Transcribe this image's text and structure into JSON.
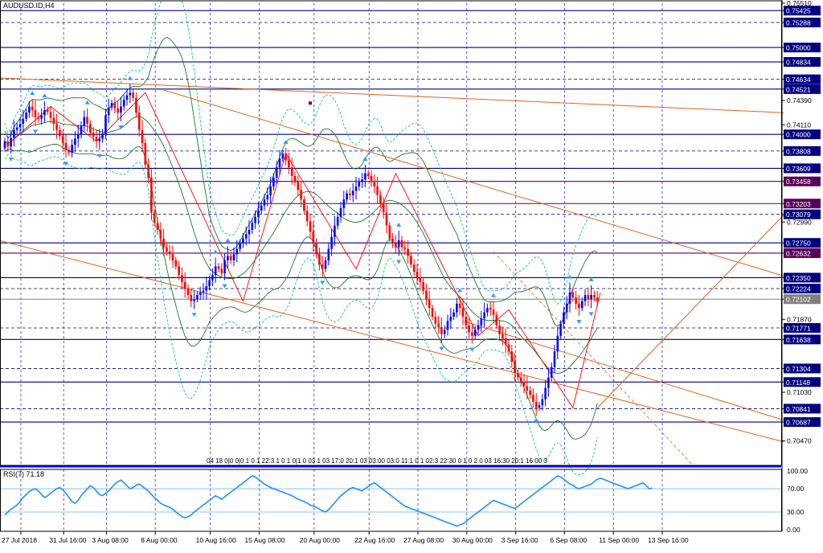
{
  "window_title": "AUDUSD.ID,H4",
  "colors": {
    "background": "#ffffff",
    "grid": "#0000cc",
    "frame": "#000080",
    "bull_candle": "#0000ff",
    "bear_candle": "#ff0000",
    "bb_middle": "#1a7a2a",
    "bb_outer": "#1a7a2a",
    "envelope": "#00cc88",
    "channel_line": "#e0641a",
    "fractal_arrow": "#3399ff",
    "rsi_line": "#1e90ff",
    "hline": "#000080",
    "price_box_bg": "#000080",
    "price_box_alt_bg": "#5a005a",
    "price_box_text": "#ffffff",
    "current_price_box_bg": "#808080"
  },
  "chart_data": [
    {
      "type": "candlestick",
      "title": "AUDUSD.ID,H4",
      "x_tick_labels": [
        "27 Jul 2018",
        "31 Jul 16:00",
        "3 Aug 08:00",
        "8 Aug 00:00",
        "10 Aug 16:00",
        "15 Aug 08:00",
        "20 Aug 00:00",
        "22 Aug 16:00",
        "27 Aug 08:00",
        "30 Aug 00:00",
        "3 Sep 16:00",
        "6 Sep 08:00",
        "11 Sep 00:00",
        "13 Sep 16:00"
      ],
      "x_tick_index": [
        0,
        14,
        28,
        44,
        62,
        78,
        96,
        114,
        130,
        146,
        162,
        178,
        194,
        210
      ],
      "ylim": [
        0.70188,
        0.7551
      ],
      "y_ticks": [
        "0.75510",
        "0.75425",
        "0.75288",
        "0.75000",
        "0.74834",
        "0.74634",
        "0.74521",
        "0.74390",
        "0.74110",
        "0.74000",
        "0.73808",
        "0.73609",
        "0.73458",
        "0.73203",
        "0.73079",
        "0.72990",
        "0.72750",
        "0.72632",
        "0.72350",
        "0.72224",
        "0.72102",
        "0.71870",
        "0.71771",
        "0.71638",
        "0.71304",
        "0.71148",
        "0.71030",
        "0.70841",
        "0.70687",
        "0.70470"
      ],
      "horizontal_levels": [
        {
          "price": 0.75425,
          "label": "0.75425",
          "style": "solid"
        },
        {
          "price": 0.75288,
          "label": "0.75288",
          "style": "dash"
        },
        {
          "price": 0.75,
          "label": "0.75000",
          "style": "solid"
        },
        {
          "price": 0.74834,
          "label": "0.74834",
          "style": "solid"
        },
        {
          "price": 0.74634,
          "label": "0.74634",
          "style": "dash"
        },
        {
          "price": 0.74521,
          "label": "0.74521",
          "style": "solid"
        },
        {
          "price": 0.74,
          "label": "0.74000",
          "style": "solid"
        },
        {
          "price": 0.73808,
          "label": "0.73808",
          "style": "dash"
        },
        {
          "price": 0.73609,
          "label": "0.73609",
          "style": "solid"
        },
        {
          "price": 0.73458,
          "label": "0.73458",
          "style": "alt"
        },
        {
          "price": 0.73203,
          "label": "0.73203",
          "style": "alt"
        },
        {
          "price": 0.73079,
          "label": "0.73079",
          "style": "dash"
        },
        {
          "price": 0.7275,
          "label": "0.72750",
          "style": "solid"
        },
        {
          "price": 0.72632,
          "label": "0.72632",
          "style": "alt"
        },
        {
          "price": 0.7235,
          "label": "0.72350",
          "style": "solid"
        },
        {
          "price": 0.72224,
          "label": "0.72224",
          "style": "dash"
        },
        {
          "price": 0.71771,
          "label": "0.71771",
          "style": "dash"
        },
        {
          "price": 0.71638,
          "label": "0.71638",
          "style": "solid"
        },
        {
          "price": 0.71304,
          "label": "0.71304",
          "style": "dash"
        },
        {
          "price": 0.71148,
          "label": "0.71148",
          "style": "solid"
        },
        {
          "price": 0.70841,
          "label": "0.70841",
          "style": "dash"
        },
        {
          "price": 0.70687,
          "label": "0.70687",
          "style": "solid"
        }
      ],
      "current_price": {
        "price": 0.72102,
        "label": "0.72102"
      },
      "closes": [
        0.7392,
        0.7386,
        0.7396,
        0.7405,
        0.7408,
        0.7412,
        0.7418,
        0.7425,
        0.7432,
        0.7428,
        0.742,
        0.7418,
        0.7422,
        0.7428,
        0.7426,
        0.7419,
        0.7412,
        0.7405,
        0.7398,
        0.739,
        0.7382,
        0.7379,
        0.7388,
        0.7395,
        0.74,
        0.741,
        0.742,
        0.7412,
        0.7402,
        0.7397,
        0.7392,
        0.7395,
        0.7401,
        0.7422,
        0.7431,
        0.7436,
        0.743,
        0.7425,
        0.7432,
        0.744,
        0.7445,
        0.7448,
        0.7442,
        0.7425,
        0.7405,
        0.739,
        0.7365,
        0.735,
        0.731,
        0.7298,
        0.729,
        0.728,
        0.727,
        0.7265,
        0.7262,
        0.7255,
        0.7248,
        0.7238,
        0.723,
        0.7222,
        0.7215,
        0.7208,
        0.721,
        0.7215,
        0.7218,
        0.722,
        0.7225,
        0.7232,
        0.7238,
        0.7248,
        0.7245,
        0.724,
        0.7255,
        0.726,
        0.7255,
        0.7262,
        0.7268,
        0.7275,
        0.728,
        0.7285,
        0.729,
        0.7298,
        0.7305,
        0.7312,
        0.7318,
        0.7325,
        0.733,
        0.734,
        0.735,
        0.7362,
        0.7372,
        0.7378,
        0.737,
        0.7362,
        0.7352,
        0.7345,
        0.7336,
        0.7325,
        0.7312,
        0.73,
        0.7288,
        0.7275,
        0.7262,
        0.725,
        0.7245,
        0.7255,
        0.7268,
        0.7282,
        0.7295,
        0.7305,
        0.7315,
        0.7325,
        0.7332,
        0.733,
        0.7335,
        0.734,
        0.7345,
        0.7348,
        0.7355,
        0.7352,
        0.7345,
        0.734,
        0.733,
        0.732,
        0.731,
        0.7295,
        0.728,
        0.7275,
        0.727,
        0.7278,
        0.727,
        0.7268,
        0.726,
        0.725,
        0.7242,
        0.7235,
        0.723,
        0.722,
        0.721,
        0.72,
        0.719,
        0.7182,
        0.7178,
        0.717,
        0.7175,
        0.7185,
        0.719,
        0.7195,
        0.7205,
        0.72,
        0.719,
        0.718,
        0.7172,
        0.7168,
        0.7175,
        0.718,
        0.7188,
        0.7195,
        0.72,
        0.7198,
        0.7192,
        0.718,
        0.717,
        0.7165,
        0.7158,
        0.715,
        0.7138,
        0.7125,
        0.712,
        0.7115,
        0.711,
        0.7105,
        0.71,
        0.7092,
        0.7085,
        0.7088,
        0.7095,
        0.7108,
        0.712,
        0.7132,
        0.715,
        0.7168,
        0.7182,
        0.7195,
        0.7205,
        0.7218,
        0.7212,
        0.7205,
        0.72,
        0.7208,
        0.7215,
        0.721,
        0.7215,
        0.7212,
        0.7208
      ],
      "indicators": [
        "Bollinger Bands",
        "Envelopes",
        "Fractals",
        "ZigZag"
      ],
      "trendlines": "orange channel lines",
      "bottom_time_labels": "04 18 0|0 0|0 1 0 1 22:3 1 0 1 0|1 0 03 1 03 17:0 20:1 03 03:00 03:0 11:1 0 1 02:3 22:30 0 1 0 2 0 03 16:30 20:1 16:00 3",
      "marker_point": {
        "index": 100,
        "price": 0.7436
      }
    },
    {
      "type": "line",
      "title": "RSI(7) 71.18",
      "indicator": "RSI(7)",
      "value_label": "71.18",
      "ylim": [
        -3,
        103
      ],
      "y_ticks": [
        "100.00",
        "70.00",
        "30.00",
        "0.00"
      ],
      "levels": [
        70,
        30
      ],
      "values": [
        25,
        30,
        35,
        38,
        42,
        48,
        55,
        60,
        65,
        68,
        70,
        66,
        60,
        55,
        58,
        62,
        66,
        70,
        72,
        68,
        62,
        55,
        48,
        45,
        50,
        58,
        64,
        70,
        75,
        72,
        66,
        60,
        58,
        62,
        66,
        72,
        78,
        82,
        85,
        80,
        75,
        70,
        72,
        76,
        78,
        74,
        70,
        66,
        60,
        55,
        50,
        45,
        42,
        40,
        38,
        35,
        30,
        26,
        22,
        20,
        22,
        25,
        30,
        34,
        38,
        42,
        46,
        50,
        54,
        58,
        55,
        52,
        56,
        60,
        64,
        68,
        72,
        76,
        80,
        84,
        88,
        92,
        90,
        86,
        82,
        78,
        75,
        72,
        70,
        68,
        66,
        64,
        62,
        60,
        58,
        55,
        52,
        50,
        48,
        45,
        42,
        40,
        38,
        35,
        32,
        30,
        34,
        40,
        46,
        52,
        58,
        62,
        66,
        70,
        72,
        70,
        68,
        66,
        70,
        74,
        78,
        80,
        76,
        72,
        68,
        64,
        60,
        56,
        52,
        48,
        44,
        40,
        38,
        36,
        34,
        32,
        30,
        28,
        26,
        24,
        22,
        20,
        18,
        16,
        14,
        12,
        10,
        8,
        6,
        8,
        10,
        14,
        18,
        22,
        26,
        30,
        34,
        38,
        42,
        46,
        50,
        48,
        46,
        44,
        42,
        40,
        38,
        36,
        40,
        44,
        48,
        52,
        56,
        60,
        64,
        68,
        72,
        76,
        80,
        84,
        88,
        92,
        90,
        86,
        82,
        78,
        76,
        72,
        70,
        72,
        74,
        76,
        78,
        82,
        86,
        88,
        86,
        84,
        82,
        80,
        78,
        76,
        74,
        72,
        70,
        72,
        74,
        76,
        78,
        80,
        75,
        70,
        71.18
      ]
    }
  ]
}
